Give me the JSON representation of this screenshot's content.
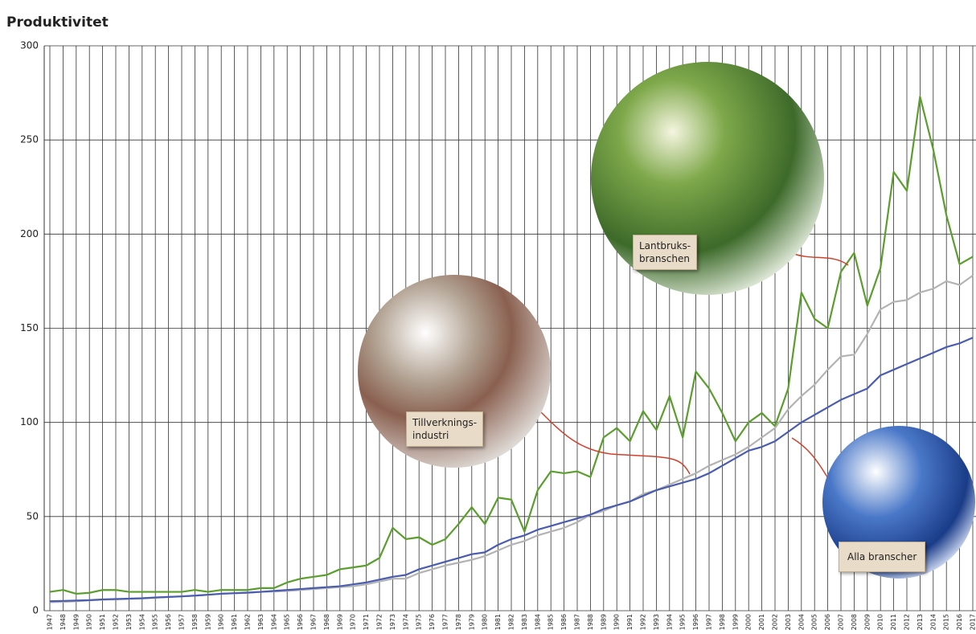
{
  "chart_data": {
    "type": "line",
    "title": "Produktivitet",
    "categories": [
      "1947",
      "1948",
      "1949",
      "1950",
      "1951",
      "1952",
      "1953",
      "1954",
      "1955",
      "1956",
      "1957",
      "1958",
      "1959",
      "1960",
      "1961",
      "1962",
      "1963",
      "1964",
      "1965",
      "1966",
      "1967",
      "1968",
      "1969",
      "1970",
      "1971",
      "1972",
      "1973",
      "1974",
      "1975",
      "1976",
      "1977",
      "1978",
      "1979",
      "1980",
      "1981",
      "1982",
      "1983",
      "1984",
      "1985",
      "1986",
      "1987",
      "1988",
      "1989",
      "1990",
      "1991",
      "1992",
      "1993",
      "1994",
      "1995",
      "1996",
      "1997",
      "1998",
      "1999",
      "2000",
      "2001",
      "2002",
      "2003",
      "2004",
      "2005",
      "2006",
      "2007",
      "2008",
      "2009",
      "2010",
      "2011",
      "2012",
      "2013",
      "2014",
      "2015",
      "2016",
      "2017"
    ],
    "series": [
      {
        "name": "Lantbruks-\nbranschen",
        "color": "#5a9e2e",
        "values": [
          10,
          11,
          9,
          9.5,
          11,
          11,
          10,
          10,
          10,
          10,
          10,
          11,
          10,
          11,
          11,
          11,
          12,
          12,
          15,
          17,
          18,
          19,
          22,
          23,
          24,
          28,
          44,
          38,
          39,
          35,
          38,
          46,
          55,
          46,
          60,
          59,
          42,
          64,
          74,
          73,
          74,
          71,
          92,
          97,
          90,
          106,
          96,
          114,
          92,
          127,
          118,
          105,
          90,
          100,
          105,
          98,
          118,
          169,
          155,
          150,
          180,
          190,
          162,
          182,
          233,
          223,
          273,
          245,
          210,
          184,
          188
        ]
      },
      {
        "name": "Tillverknings-\nindustri",
        "color": "#b3b3b3",
        "values": [
          4.5,
          4.7,
          5,
          5.5,
          5.8,
          6,
          6.3,
          6.5,
          7,
          7.3,
          7.6,
          8,
          8.4,
          9,
          9.2,
          9.5,
          10,
          10.2,
          10.5,
          11,
          11.5,
          12,
          12.5,
          13,
          14,
          15.5,
          17,
          17,
          20,
          22,
          24,
          25.5,
          27,
          29,
          32,
          35,
          37,
          40,
          42,
          44,
          47,
          51,
          53,
          56,
          58,
          62,
          64,
          67,
          70,
          73,
          77,
          80,
          83,
          87,
          92,
          97,
          107,
          114,
          120,
          128,
          135,
          136,
          147,
          160,
          164,
          165,
          169,
          171,
          175,
          173,
          178
        ]
      },
      {
        "name": "Alla branscher",
        "color": "#4a5cb0",
        "values": [
          5,
          5.2,
          5.4,
          5.6,
          6,
          6.2,
          6.4,
          6.6,
          7,
          7.3,
          7.6,
          8,
          8.5,
          9,
          9.3,
          9.6,
          10,
          10.5,
          11,
          11.5,
          12,
          12.5,
          13,
          14,
          15,
          16.5,
          18,
          19,
          22,
          24,
          26,
          28,
          30,
          31,
          35,
          38,
          40,
          43,
          45,
          47,
          49,
          51,
          54,
          56,
          58,
          61,
          64,
          66,
          68,
          70,
          73,
          77,
          81,
          85,
          87,
          90,
          95,
          100,
          104,
          108,
          112,
          115,
          118,
          125,
          128,
          131,
          134,
          137,
          140,
          142,
          145
        ]
      }
    ],
    "ylim": [
      0,
      300
    ],
    "yticks": [
      0,
      50,
      100,
      150,
      200,
      250,
      300
    ],
    "grid": true
  }
}
